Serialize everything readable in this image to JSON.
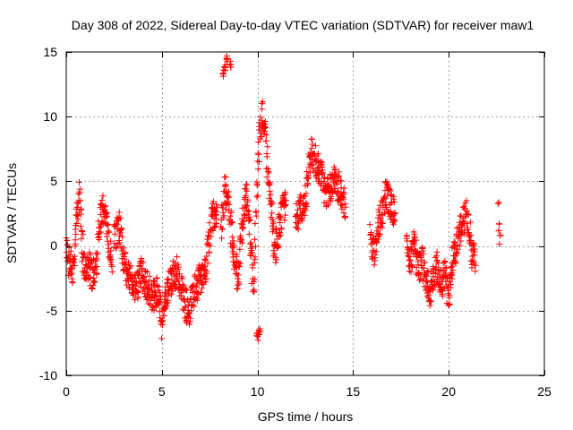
{
  "chart_data": {
    "type": "scatter",
    "title": "Day 308 of 2022, Sidereal Day-to-day VTEC variation (SDTVAR) for receiver maw1",
    "xlabel": "GPS time / hours",
    "ylabel": "SDTVAR / TECUs",
    "xlim": [
      0,
      25
    ],
    "ylim": [
      -10,
      15
    ],
    "xticks": [
      0,
      5,
      10,
      15,
      20,
      25
    ],
    "yticks": [
      -10,
      -5,
      0,
      5,
      10,
      15
    ],
    "xtick_labels": [
      "0",
      "5",
      "10",
      "15",
      "20",
      "25"
    ],
    "ytick_labels": [
      "-10",
      "-5",
      "0",
      "5",
      "10",
      "15"
    ],
    "grid": true,
    "marker": "+",
    "marker_color": "#ff0000",
    "series": [
      {
        "name": "SDTVAR",
        "segments": [
          {
            "x": [
              0.0,
              0.2,
              0.4,
              0.5,
              0.6,
              0.7,
              0.8,
              0.9,
              1.0,
              1.2,
              1.4,
              1.6,
              1.8,
              2.0,
              2.2,
              2.4
            ],
            "y": [
              -0.5,
              -1.5,
              -2.0,
              1.5,
              3.0,
              4.0,
              1.0,
              -1.0,
              -2.0,
              -1.5,
              -2.5,
              -1.0,
              2.5,
              3.0,
              0.5,
              -2.0
            ]
          },
          {
            "x": [
              2.5,
              2.8,
              3.0,
              3.3,
              3.6,
              3.9,
              4.2,
              4.5,
              4.8,
              5.0,
              5.2,
              5.5,
              5.8,
              6.1,
              6.4,
              6.7,
              7.0,
              7.3,
              7.6,
              7.9
            ],
            "y": [
              0.5,
              1.5,
              -1.0,
              -2.5,
              -3.5,
              -2.0,
              -3.0,
              -4.0,
              -3.5,
              -6.0,
              -4.0,
              -2.5,
              -2.0,
              -4.0,
              -5.0,
              -3.5,
              -2.5,
              -2.0,
              2.0,
              3.0
            ]
          },
          {
            "x": [
              8.1,
              8.3,
              8.5,
              8.8,
              9.0,
              9.2,
              9.4,
              9.6,
              9.8,
              10.0,
              10.1,
              10.3,
              10.5,
              10.7,
              10.9,
              11.2,
              11.5
            ],
            "y": [
              1.5,
              4.5,
              3.0,
              -1.0,
              -2.5,
              2.0,
              4.0,
              1.0,
              -3.5,
              5.0,
              8.5,
              10.5,
              7.0,
              3.0,
              -0.5,
              2.0,
              3.5
            ]
          },
          {
            "x": [
              12.0,
              12.5,
              12.8,
              13.2,
              13.6,
              14.0,
              14.3,
              14.6
            ],
            "y": [
              2.0,
              3.5,
              7.5,
              6.0,
              4.0,
              5.0,
              4.5,
              3.0
            ]
          },
          {
            "x": [
              15.9,
              16.1,
              16.3,
              16.5,
              16.7,
              17.2
            ],
            "y": [
              0.5,
              -0.5,
              1.5,
              2.5,
              4.0,
              2.5
            ]
          },
          {
            "x": [
              17.8,
              18.0,
              18.2,
              18.4,
              18.6,
              18.8,
              19.0,
              19.2,
              19.4,
              19.6,
              19.8,
              20.0,
              20.2,
              20.4,
              20.6,
              20.8,
              21.0,
              21.2,
              21.4
            ],
            "y": [
              0.0,
              -1.5,
              0.5,
              -2.0,
              -1.0,
              -2.5,
              -3.5,
              -2.5,
              -1.5,
              -3.0,
              -2.0,
              -4.0,
              -1.0,
              0.0,
              1.5,
              2.0,
              2.5,
              -0.5,
              -1.5
            ]
          },
          {
            "x": [
              22.6,
              22.7
            ],
            "y": [
              2.5,
              0.8
            ]
          }
        ],
        "outliers": {
          "x": [
            8.2,
            8.3,
            8.4,
            8.6,
            10.0,
            10.1
          ],
          "y": [
            13.3,
            13.8,
            14.4,
            14.0,
            -7.0,
            -6.6
          ]
        }
      }
    ]
  }
}
